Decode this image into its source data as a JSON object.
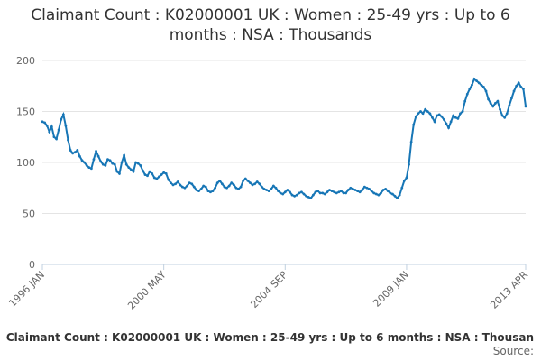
{
  "chart_data": {
    "type": "line",
    "title": "Claimant Count : K02000001 UK : Women : 25-49 yrs : Up to 6 months : NSA : Thousands",
    "footer": "Claimant Count : K02000001 UK : Women : 25-49 yrs : Up to 6 months : NSA : Thousan",
    "source": "Source:",
    "color": "#1776b6",
    "grid": true,
    "ylim": [
      0,
      200
    ],
    "yticks": [
      0,
      50,
      100,
      150,
      200
    ],
    "categories": [
      "1996 JAN",
      null,
      null,
      null,
      null,
      null,
      null,
      null,
      null,
      null,
      null,
      null,
      null,
      null,
      null,
      null,
      null,
      null,
      null,
      null,
      null,
      null,
      null,
      null,
      null,
      null,
      null,
      null,
      null,
      null,
      null,
      null,
      null,
      null,
      null,
      null,
      null,
      null,
      null,
      null,
      null,
      null,
      null,
      null,
      null,
      null,
      null,
      null,
      null,
      null,
      null,
      null,
      "2000 MAY",
      null,
      null,
      null,
      null,
      null,
      null,
      null,
      null,
      null,
      null,
      null,
      null,
      null,
      null,
      null,
      null,
      null,
      null,
      null,
      null,
      null,
      null,
      null,
      null,
      null,
      null,
      null,
      null,
      null,
      null,
      null,
      null,
      null,
      null,
      null,
      null,
      null,
      null,
      null,
      null,
      null,
      null,
      null,
      null,
      null,
      null,
      null,
      null,
      null,
      null,
      null,
      "2004 SEP",
      null,
      null,
      null,
      null,
      null,
      null,
      null,
      null,
      null,
      null,
      null,
      null,
      null,
      null,
      null,
      null,
      null,
      null,
      null,
      null,
      null,
      null,
      null,
      null,
      null,
      null,
      null,
      null,
      null,
      null,
      null,
      null,
      null,
      null,
      null,
      null,
      null,
      null,
      null,
      null,
      null,
      null,
      null,
      null,
      null,
      null,
      null,
      null,
      null,
      null,
      null,
      "2009 JAN",
      null,
      null,
      null,
      null,
      null,
      null,
      null,
      null,
      null,
      null,
      null,
      null,
      null,
      null,
      null,
      null,
      null,
      null,
      null,
      null,
      null,
      null,
      null,
      null,
      null,
      null,
      null,
      null,
      null,
      null,
      null,
      null,
      null,
      null,
      null,
      null,
      null,
      null,
      null,
      null,
      null,
      null,
      null,
      null,
      null,
      null,
      null,
      null,
      null,
      null,
      "2013 APR"
    ],
    "values": [
      140,
      139,
      136,
      130,
      135,
      125,
      123,
      132,
      142,
      147,
      136,
      122,
      112,
      109,
      110,
      112,
      106,
      102,
      100,
      97,
      95,
      94,
      103,
      111,
      106,
      101,
      98,
      97,
      103,
      102,
      99,
      98,
      91,
      89,
      100,
      107,
      98,
      95,
      93,
      91,
      100,
      99,
      97,
      92,
      88,
      87,
      91,
      89,
      85,
      84,
      86,
      88,
      90,
      89,
      83,
      80,
      78,
      79,
      81,
      78,
      76,
      75,
      77,
      80,
      79,
      76,
      73,
      72,
      74,
      77,
      76,
      72,
      71,
      72,
      75,
      80,
      82,
      79,
      76,
      75,
      77,
      80,
      78,
      75,
      74,
      76,
      82,
      84,
      82,
      80,
      78,
      79,
      81,
      79,
      76,
      74,
      73,
      72,
      74,
      77,
      75,
      72,
      70,
      69,
      71,
      73,
      71,
      68,
      67,
      68,
      70,
      71,
      69,
      67,
      66,
      65,
      68,
      71,
      72,
      70,
      70,
      69,
      71,
      73,
      72,
      71,
      70,
      71,
      72,
      70,
      70,
      73,
      75,
      74,
      73,
      72,
      71,
      73,
      76,
      75,
      74,
      72,
      70,
      69,
      68,
      70,
      73,
      74,
      72,
      70,
      69,
      67,
      65,
      68,
      75,
      82,
      85,
      98,
      120,
      137,
      145,
      148,
      150,
      148,
      152,
      150,
      148,
      144,
      140,
      146,
      147,
      145,
      142,
      138,
      134,
      140,
      146,
      144,
      143,
      148,
      150,
      160,
      167,
      172,
      176,
      182,
      180,
      178,
      176,
      174,
      170,
      162,
      158,
      155,
      158,
      160,
      152,
      146,
      144,
      148,
      156,
      163,
      170,
      175,
      178,
      174,
      172,
      155
    ]
  }
}
